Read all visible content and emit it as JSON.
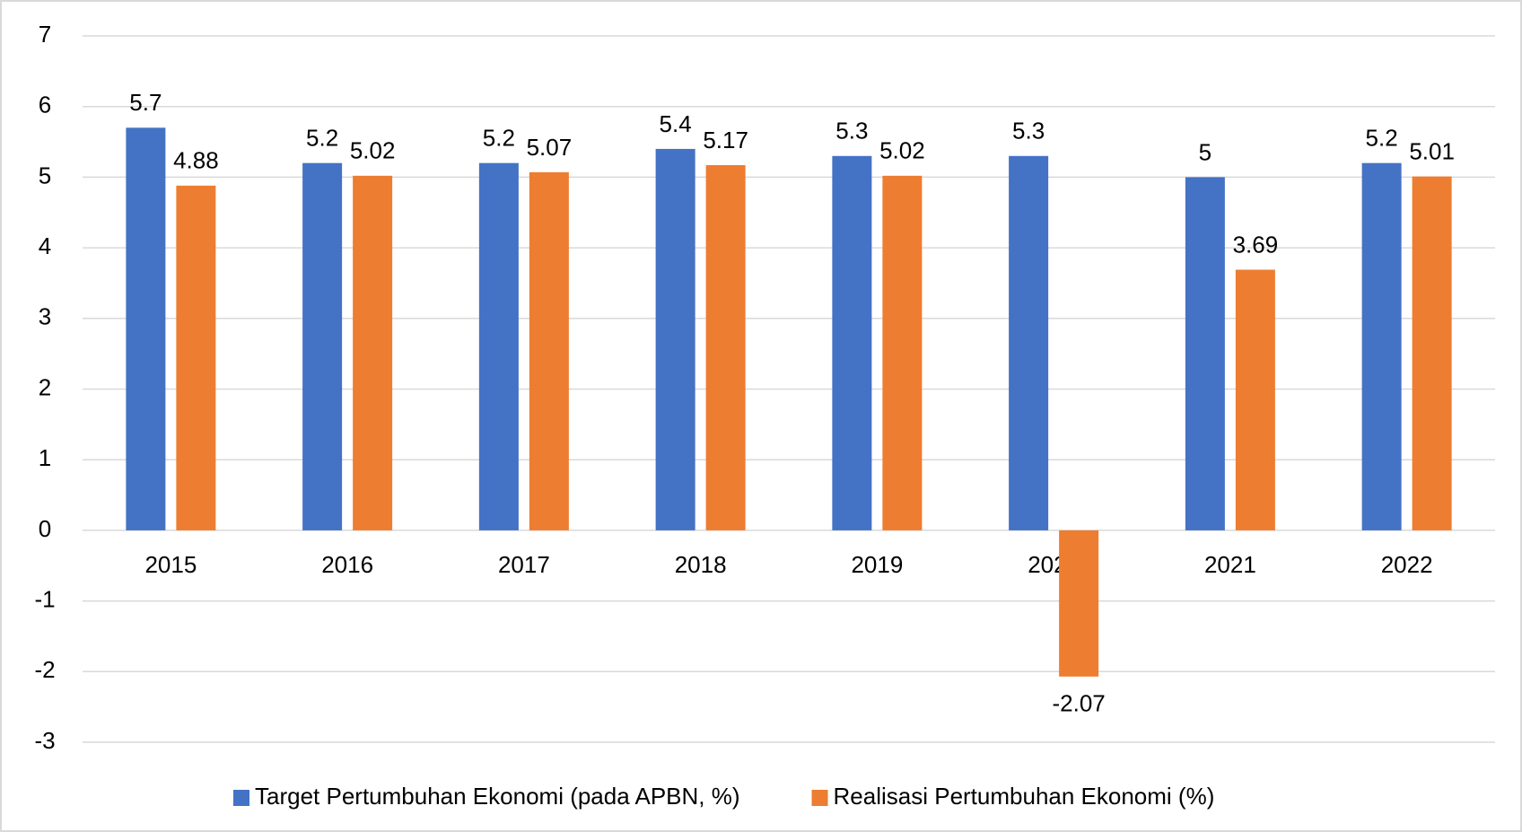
{
  "chart_data": {
    "type": "bar",
    "categories": [
      "2015",
      "2016",
      "2017",
      "2018",
      "2019",
      "2020",
      "2021",
      "2022"
    ],
    "series": [
      {
        "name": "Target Pertumbuhan Ekonomi (pada APBN, %)",
        "color": "#4472c4",
        "values": [
          5.7,
          5.2,
          5.2,
          5.4,
          5.3,
          5.3,
          5,
          5.2
        ]
      },
      {
        "name": "Realisasi Pertumbuhan Ekonomi (%)",
        "color": "#ed7d31",
        "values": [
          4.88,
          5.02,
          5.07,
          5.17,
          5.02,
          -2.07,
          3.69,
          5.01
        ]
      }
    ],
    "ylim": [
      -3,
      7
    ],
    "yticks": [
      -3,
      -2,
      -1,
      0,
      1,
      2,
      3,
      4,
      5,
      6,
      7
    ],
    "grid": true,
    "legend": "bottom"
  }
}
